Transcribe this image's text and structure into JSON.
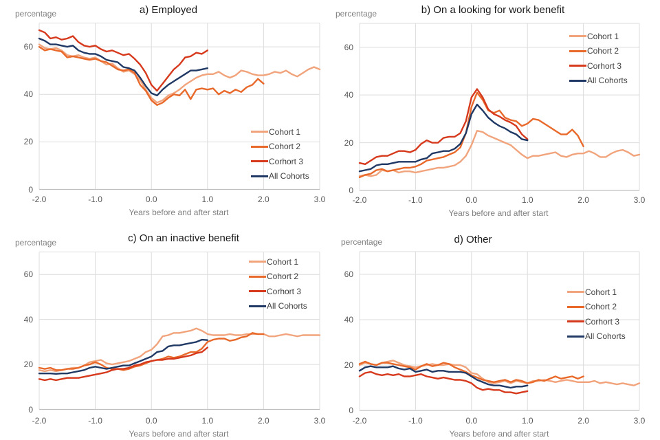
{
  "axes": {
    "x_label": "Years before and after start",
    "y_label": "percentage",
    "x_ticks": [
      "-2.0",
      "-1.0",
      "0.0",
      "1.0",
      "2.0",
      "3.0"
    ],
    "y_ticks": [
      "0",
      "20",
      "40",
      "60"
    ],
    "x_range": [
      -2,
      3
    ],
    "y_range": [
      0,
      70
    ],
    "y_grid_step": 20,
    "grid": true,
    "grid_color": "#dcdcdc",
    "axis_color": "#c0c0c0"
  },
  "series_meta": [
    {
      "label": "Cohort 1",
      "color": "#F1A47C"
    },
    {
      "label": "Cohort 2",
      "color": "#E8692A"
    },
    {
      "label": "Corhort 3",
      "color": "#D6391C"
    },
    {
      "label": "All Cohorts",
      "color": "#1F3864"
    }
  ],
  "chart_data": [
    {
      "type": "line",
      "title": "a) Employed",
      "xlabel": "Years before and after start",
      "ylabel": "percentage",
      "xlim": [
        -2,
        3
      ],
      "ylim": [
        0,
        70
      ],
      "legend_position": "bottom-right",
      "x_start": -2,
      "x_step": 0.1,
      "series": [
        {
          "name": "Cohort 1",
          "values": [
            61,
            59.5,
            59,
            59.5,
            58.5,
            56.5,
            56,
            56.5,
            55.5,
            55,
            55.5,
            54,
            52.5,
            53,
            51,
            49.5,
            50,
            48.5,
            46,
            42,
            38.5,
            36.5,
            37.5,
            39.5,
            40.5,
            42,
            44,
            45.5,
            47,
            48,
            48.5,
            48.5,
            49.5,
            48,
            47,
            48,
            50,
            49.5,
            48.5,
            48,
            48,
            48.5,
            49.5,
            49,
            50,
            48.5,
            47.5,
            49,
            50.5,
            51.5,
            50.5
          ]
        },
        {
          "name": "Cohort 2",
          "values": [
            60,
            58.5,
            59,
            58.5,
            58,
            55.5,
            56,
            55.5,
            55,
            54.5,
            55,
            54,
            53.5,
            52,
            50.5,
            50,
            50.5,
            49,
            44,
            41.5,
            37.5,
            35.5,
            36.5,
            38.5,
            40,
            39.5,
            42,
            38,
            42,
            42.5,
            42,
            42.5,
            40,
            41.5,
            40.5,
            42,
            41,
            43,
            44,
            46.5,
            44.5
          ]
        },
        {
          "name": "Corhort 3",
          "values": [
            67,
            66,
            63.5,
            64,
            63,
            63.5,
            64.5,
            62,
            60.5,
            60,
            60.5,
            59,
            58,
            58.5,
            57.5,
            56.5,
            57,
            55,
            52.5,
            49,
            44,
            41.5,
            44.5,
            47.5,
            50.5,
            52.5,
            55.5,
            56,
            57.5,
            57,
            58.5
          ]
        },
        {
          "name": "All Cohorts",
          "values": [
            63.5,
            62.5,
            61,
            61,
            60.5,
            60,
            60.5,
            58.5,
            57.5,
            57,
            57,
            56,
            54.5,
            54,
            53.5,
            51.5,
            51,
            50,
            47,
            43.5,
            40.5,
            39.5,
            42,
            44,
            45.5,
            47,
            48.5,
            50,
            50,
            50.5,
            51
          ]
        }
      ]
    },
    {
      "type": "line",
      "title": "b) On a looking for work benefit",
      "xlabel": "Years before and after start",
      "ylabel": "percentage",
      "xlim": [
        -2,
        3
      ],
      "ylim": [
        0,
        70
      ],
      "legend_position": "top-right",
      "x_start": -2,
      "x_step": 0.1,
      "series": [
        {
          "name": "Cohort 1",
          "values": [
            6,
            6.5,
            6,
            6.5,
            8.5,
            8,
            8.5,
            7.5,
            8,
            8,
            7.5,
            8,
            8.5,
            9,
            9.5,
            9.5,
            10,
            10.5,
            12,
            14.5,
            19,
            25,
            24.5,
            23,
            22,
            21,
            20,
            19,
            17,
            15,
            13.5,
            14.5,
            14.5,
            15,
            15.5,
            16,
            14.5,
            14,
            15,
            15.5,
            15.5,
            16.5,
            15.5,
            14,
            14,
            15.5,
            16.5,
            17,
            16,
            14.5,
            15
          ]
        },
        {
          "name": "Cohort 2",
          "values": [
            5.5,
            6.5,
            7,
            8.5,
            9,
            8,
            8.5,
            9,
            9.5,
            9.5,
            10,
            11,
            12.5,
            13,
            13.5,
            14,
            15,
            16,
            18,
            24,
            35,
            41,
            38,
            33.5,
            32.5,
            33.5,
            30.5,
            29.5,
            29,
            27,
            28,
            30,
            29.5,
            28,
            26.5,
            25,
            23.5,
            23.5,
            25.5,
            23,
            18.5
          ]
        },
        {
          "name": "Corhort 3",
          "values": [
            11.5,
            11,
            12.5,
            14,
            14.5,
            14.5,
            15.5,
            16.5,
            16.5,
            16,
            17,
            19.5,
            21,
            20,
            20,
            22,
            22.5,
            22.5,
            24,
            29,
            39,
            42.5,
            39,
            34,
            32,
            31,
            29.5,
            28.5,
            27,
            23.5,
            21.5
          ]
        },
        {
          "name": "All Cohorts",
          "values": [
            8,
            8.5,
            9,
            10.5,
            11,
            11,
            11.5,
            12,
            12,
            12,
            12,
            13,
            13.5,
            15.5,
            16,
            16.5,
            16.5,
            17.5,
            19.5,
            24,
            32,
            36,
            33.5,
            30.5,
            28.5,
            27,
            26,
            24.5,
            23.5,
            21.5,
            21
          ]
        }
      ]
    },
    {
      "type": "line",
      "title": "c) On an inactive benefit",
      "xlabel": "Years before and after start",
      "ylabel": "percentage",
      "xlim": [
        -2,
        3
      ],
      "ylim": [
        0,
        70
      ],
      "legend_position": "top-right",
      "x_start": -2,
      "x_step": 0.1,
      "series": [
        {
          "name": "Cohort 1",
          "values": [
            17.5,
            17,
            17.5,
            17,
            17.5,
            18,
            18.5,
            18.5,
            19.5,
            21,
            21.5,
            22,
            20.5,
            20,
            20.5,
            21,
            21.5,
            22.5,
            23.5,
            25.5,
            26.5,
            29,
            32.5,
            33,
            34,
            34,
            34.5,
            35,
            36,
            35,
            33.5,
            33,
            33,
            33,
            33.5,
            33,
            33,
            33.5,
            33.5,
            33.5,
            33.5,
            32.5,
            32.5,
            33,
            33.5,
            33,
            32.5,
            33,
            33,
            33,
            33
          ]
        },
        {
          "name": "Cohort 2",
          "values": [
            18.5,
            18,
            18.5,
            17.5,
            17.5,
            18,
            18,
            18.5,
            19.5,
            20,
            21,
            20,
            18.5,
            18,
            18,
            17.5,
            18,
            19,
            19.5,
            20.5,
            21.5,
            22,
            22.5,
            23.5,
            23,
            23.5,
            24.5,
            25.5,
            25.5,
            27,
            30,
            31,
            31.5,
            31.5,
            30.5,
            31,
            32,
            32.5,
            34,
            33.5,
            33.5
          ]
        },
        {
          "name": "Corhort 3",
          "values": [
            13.5,
            13,
            13.5,
            13,
            13.5,
            14,
            14,
            14,
            14.5,
            15,
            15.5,
            16,
            16.5,
            17.5,
            18,
            18,
            18.5,
            19.5,
            20,
            21,
            21.5,
            22,
            22,
            22.5,
            22.5,
            23,
            23.5,
            24,
            25,
            25.5,
            27.5
          ]
        },
        {
          "name": "All Cohorts",
          "values": [
            16,
            16,
            16,
            15.8,
            16,
            16,
            16.5,
            17,
            17.5,
            18.5,
            19,
            18.5,
            18,
            18.5,
            19,
            19.5,
            19.5,
            20.5,
            21.5,
            22.5,
            23.5,
            25.5,
            26,
            28,
            28.5,
            28.5,
            29,
            29.5,
            30,
            31,
            30.8
          ]
        }
      ]
    },
    {
      "type": "line",
      "title": "d) Other",
      "xlabel": "Years before and after start",
      "ylabel": "percentage",
      "xlim": [
        -2,
        3
      ],
      "ylim": [
        0,
        70
      ],
      "legend_position": "middle-right",
      "x_start": -2,
      "x_step": 0.1,
      "series": [
        {
          "name": "Cohort 1",
          "values": [
            20,
            21,
            20.5,
            20,
            21,
            21.5,
            22,
            21,
            20,
            19.5,
            19,
            19.5,
            20,
            20.5,
            20,
            20,
            20.5,
            20,
            20,
            19,
            16.5,
            16,
            14,
            12.5,
            12,
            12.5,
            13,
            12,
            13,
            12.5,
            12,
            13,
            13,
            13.5,
            13,
            12.5,
            13,
            13.5,
            13,
            12.5,
            12.5,
            12.5,
            13,
            12,
            12.5,
            12,
            11.5,
            12,
            11.5,
            11,
            12
          ]
        },
        {
          "name": "Cohort 2",
          "values": [
            20.5,
            21.5,
            20.5,
            20,
            21,
            21,
            20.5,
            20,
            19.5,
            19,
            18,
            19.5,
            20.5,
            19.5,
            20,
            21,
            20.5,
            19,
            18,
            17,
            15.5,
            14.5,
            13.5,
            13,
            12.5,
            13,
            13.5,
            12.5,
            13.5,
            13,
            12,
            12.5,
            13.5,
            13,
            14,
            15,
            14,
            14.5,
            15,
            14,
            15
          ]
        },
        {
          "name": "Corhort 3",
          "values": [
            15,
            16.5,
            17,
            16,
            15.5,
            16,
            15.5,
            16,
            15,
            15,
            15.5,
            16,
            15,
            14.5,
            14,
            14.5,
            14,
            13.5,
            13.5,
            13,
            12,
            10,
            9,
            9.5,
            9,
            9,
            8,
            8,
            7.5,
            8,
            8.5
          ]
        },
        {
          "name": "All Cohorts",
          "values": [
            17.5,
            19,
            19.5,
            19,
            19,
            19,
            19.5,
            18.5,
            18,
            18.5,
            17,
            17.5,
            18,
            17,
            17.5,
            17.5,
            17,
            17,
            17,
            16.5,
            15,
            13.5,
            12.5,
            11.5,
            11,
            11,
            10.5,
            10,
            10.5,
            10.5,
            11
          ]
        }
      ]
    }
  ]
}
